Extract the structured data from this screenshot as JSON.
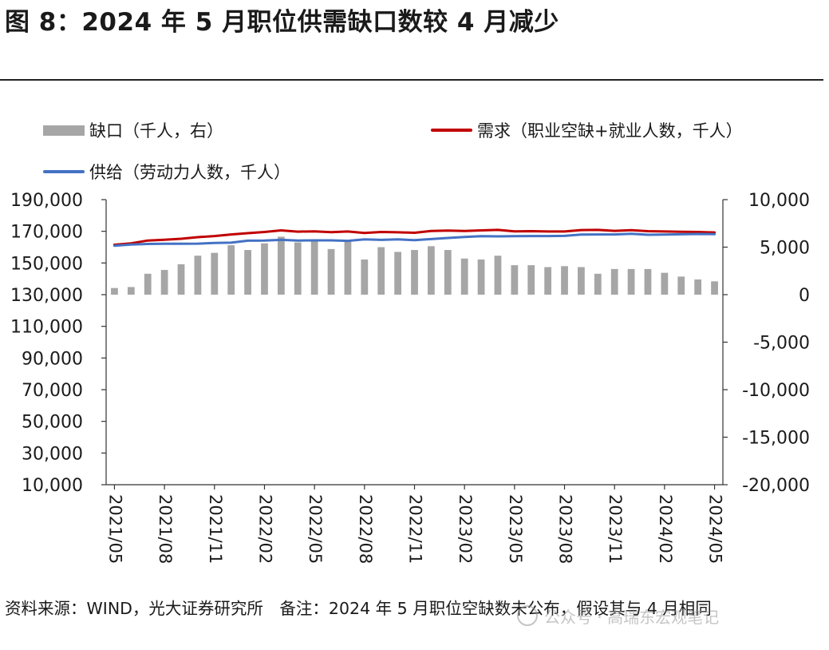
{
  "title": "图 8：2024 年 5 月职位供需缺口数较 4 月减少",
  "legend": {
    "gap": "缺口（千人，右）",
    "demand": "需求（职业空缺+就业人数，千人）",
    "supply": "供给（劳动力人数，千人）"
  },
  "colors": {
    "gap": "#a6a6a6",
    "demand": "#c00000",
    "supply": "#4472c4"
  },
  "footer": "资料来源：WIND，光大证券研究所　备注：2024 年 5 月职位空缺数未公布，假设其与 4 月相同",
  "watermark": "公众号 · 高瑞东宏观笔记",
  "chart_data": {
    "type": "bar+line",
    "left_axis": {
      "range": [
        10000,
        190000
      ],
      "ticks": [
        "10,000",
        "30,000",
        "50,000",
        "70,000",
        "90,000",
        "110,000",
        "130,000",
        "150,000",
        "170,000",
        "190,000"
      ]
    },
    "right_axis": {
      "range": [
        -20000,
        10000
      ],
      "ticks": [
        "-20,000",
        "-15,000",
        "-10,000",
        "-5,000",
        "0",
        "5,000",
        "10,000"
      ]
    },
    "x_tick_labels": [
      "2021/05",
      "2021/08",
      "2021/11",
      "2022/02",
      "2022/05",
      "2022/08",
      "2022/11",
      "2023/02",
      "2023/05",
      "2023/08",
      "2023/11",
      "2024/02",
      "2024/05"
    ],
    "x": [
      "2021/05",
      "2021/06",
      "2021/07",
      "2021/08",
      "2021/09",
      "2021/10",
      "2021/11",
      "2021/12",
      "2022/01",
      "2022/02",
      "2022/03",
      "2022/04",
      "2022/05",
      "2022/06",
      "2022/07",
      "2022/08",
      "2022/09",
      "2022/10",
      "2022/11",
      "2022/12",
      "2023/01",
      "2023/02",
      "2023/03",
      "2023/04",
      "2023/05",
      "2023/06",
      "2023/07",
      "2023/08",
      "2023/09",
      "2023/10",
      "2023/11",
      "2023/12",
      "2024/01",
      "2024/02",
      "2024/03",
      "2024/04",
      "2024/05"
    ],
    "series": [
      {
        "name": "缺口（千人，右）",
        "type": "bar",
        "axis": "right",
        "values": [
          700,
          800,
          2200,
          2600,
          3200,
          4100,
          4400,
          5200,
          4700,
          5400,
          6100,
          5500,
          5800,
          4800,
          5700,
          3700,
          5000,
          4500,
          4700,
          5100,
          4700,
          3800,
          3700,
          4100,
          3100,
          3100,
          2900,
          3000,
          2900,
          2200,
          2700,
          2700,
          2700,
          2300,
          1900,
          1600,
          1400
        ]
      },
      {
        "name": "需求（职业空缺+就业人数，千人）",
        "type": "line",
        "axis": "left",
        "values": [
          161500,
          162400,
          164200,
          164700,
          165300,
          166300,
          167000,
          168000,
          168800,
          169600,
          170600,
          169800,
          170000,
          169500,
          169900,
          169000,
          169600,
          169400,
          169100,
          170200,
          170500,
          170200,
          170600,
          170900,
          170000,
          170100,
          169900,
          169900,
          170800,
          170900,
          170300,
          170700,
          170100,
          169900,
          169700,
          169600,
          169300
        ]
      },
      {
        "name": "供给（劳动力人数，千人）",
        "type": "line",
        "axis": "left",
        "values": [
          160900,
          161600,
          162000,
          162100,
          162100,
          162200,
          162600,
          162800,
          164100,
          164200,
          164600,
          164200,
          164300,
          164300,
          164000,
          164900,
          164600,
          164900,
          164400,
          165100,
          165800,
          166400,
          166900,
          166800,
          166900,
          167000,
          167000,
          167100,
          167900,
          168000,
          168000,
          168400,
          167800,
          167900,
          168100,
          168300,
          168200
        ]
      }
    ]
  }
}
